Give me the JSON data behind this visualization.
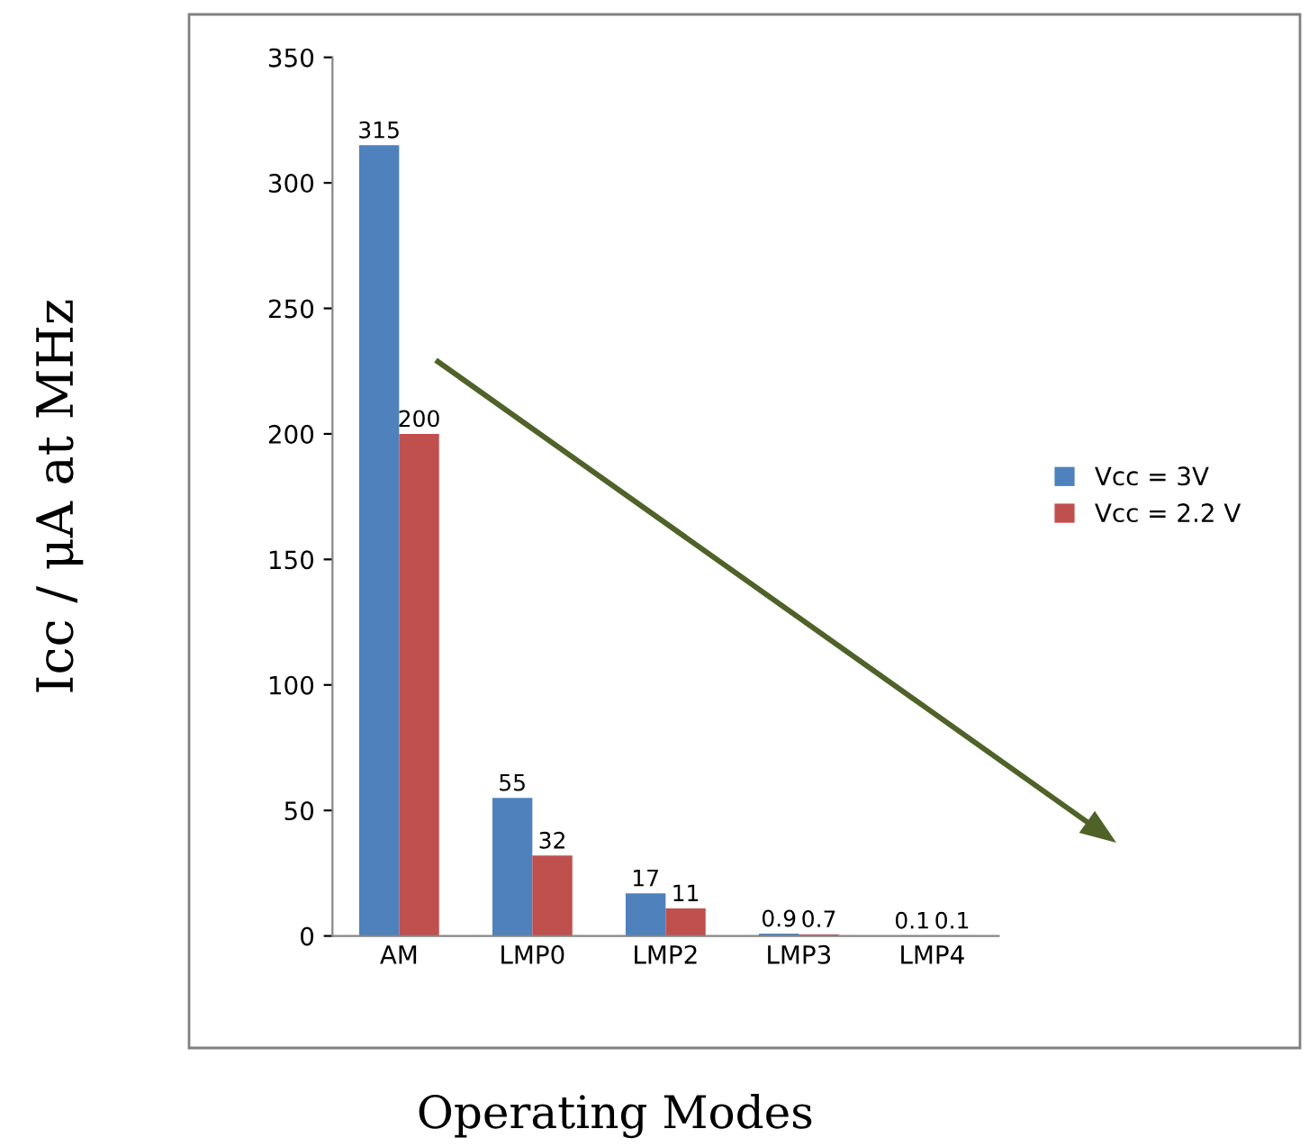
{
  "chart_data": {
    "type": "bar",
    "xlabel": "Operating Modes",
    "ylabel": "Icc / μA at MHz",
    "categories": [
      "AM",
      "LMP0",
      "LMP2",
      "LMP3",
      "LMP4"
    ],
    "series": [
      {
        "name": "Vcc = 3V",
        "color": "#4f81bd",
        "values": [
          315,
          55,
          17,
          0.9,
          0.1
        ]
      },
      {
        "name": "Vcc = 2.2 V",
        "color": "#c0504d",
        "values": [
          200,
          32,
          11,
          0.7,
          0.1
        ]
      }
    ],
    "ylim": [
      0,
      350
    ],
    "yticks": [
      0,
      50,
      100,
      150,
      200,
      250,
      300,
      350
    ],
    "data_labels": true,
    "grid": false,
    "legend": "right"
  }
}
